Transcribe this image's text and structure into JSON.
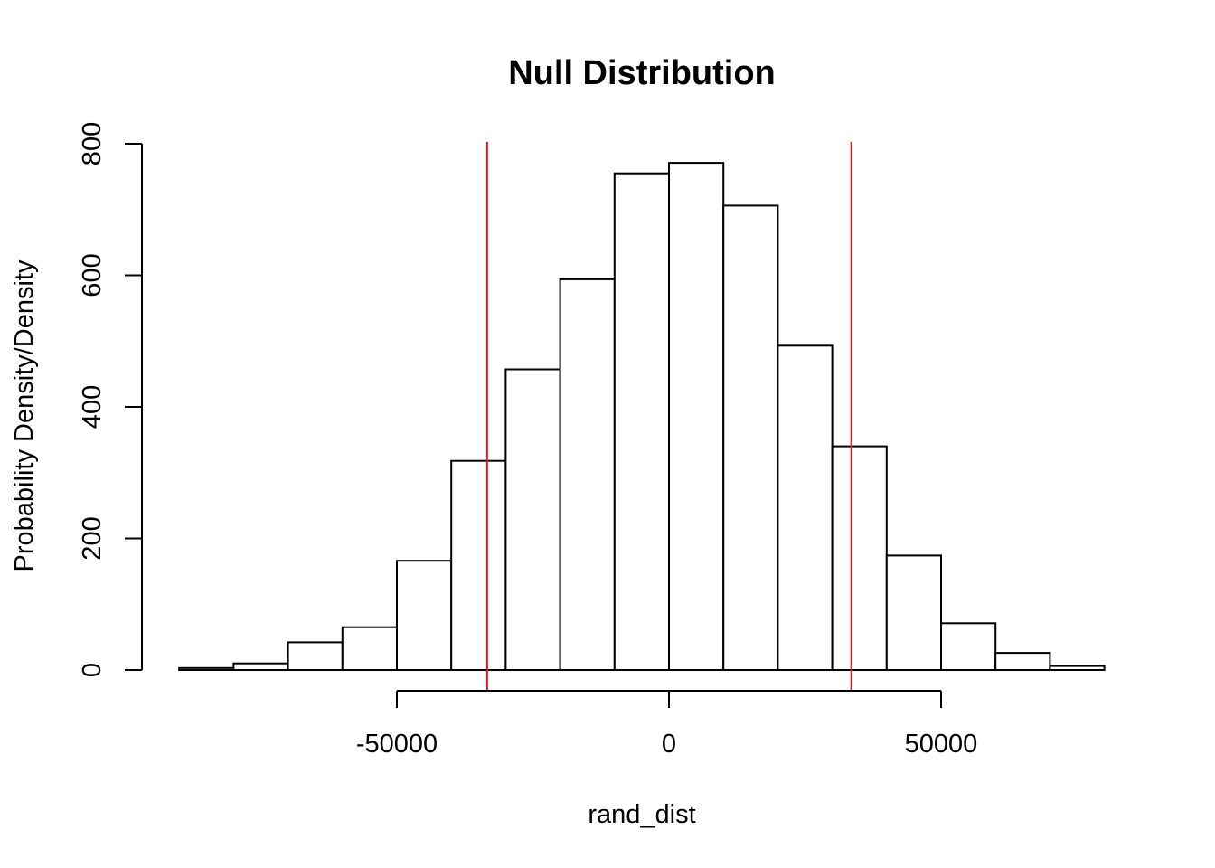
{
  "chart_data": {
    "type": "bar",
    "title": "Null Distribution",
    "xlabel": "rand_dist",
    "ylabel": "Probability Density/Density",
    "xlim": [
      -90000,
      80000
    ],
    "ylim": [
      0,
      800
    ],
    "x_ticks": [
      -50000,
      0,
      50000
    ],
    "x_tick_labels": [
      "-50000",
      "0",
      "50000"
    ],
    "y_ticks": [
      0,
      200,
      400,
      600,
      800
    ],
    "y_tick_labels": [
      "0",
      "200",
      "400",
      "600",
      "800"
    ],
    "bins": [
      {
        "x0": -90000,
        "x1": -80000,
        "value": 3
      },
      {
        "x0": -80000,
        "x1": -70000,
        "value": 10
      },
      {
        "x0": -70000,
        "x1": -60000,
        "value": 42
      },
      {
        "x0": -60000,
        "x1": -50000,
        "value": 65
      },
      {
        "x0": -50000,
        "x1": -40000,
        "value": 166
      },
      {
        "x0": -40000,
        "x1": -30000,
        "value": 318
      },
      {
        "x0": -30000,
        "x1": -20000,
        "value": 457
      },
      {
        "x0": -20000,
        "x1": -10000,
        "value": 594
      },
      {
        "x0": -10000,
        "x1": 0,
        "value": 755
      },
      {
        "x0": 0,
        "x1": 10000,
        "value": 771
      },
      {
        "x0": 10000,
        "x1": 20000,
        "value": 706
      },
      {
        "x0": 20000,
        "x1": 30000,
        "value": 493
      },
      {
        "x0": 30000,
        "x1": 40000,
        "value": 340
      },
      {
        "x0": 40000,
        "x1": 50000,
        "value": 174
      },
      {
        "x0": 50000,
        "x1": 60000,
        "value": 71
      },
      {
        "x0": 60000,
        "x1": 70000,
        "value": 26
      },
      {
        "x0": 70000,
        "x1": 80000,
        "value": 6
      }
    ],
    "reference_lines": [
      -33400,
      33500
    ],
    "reference_line_color": "#e31a1c",
    "grid": false
  }
}
